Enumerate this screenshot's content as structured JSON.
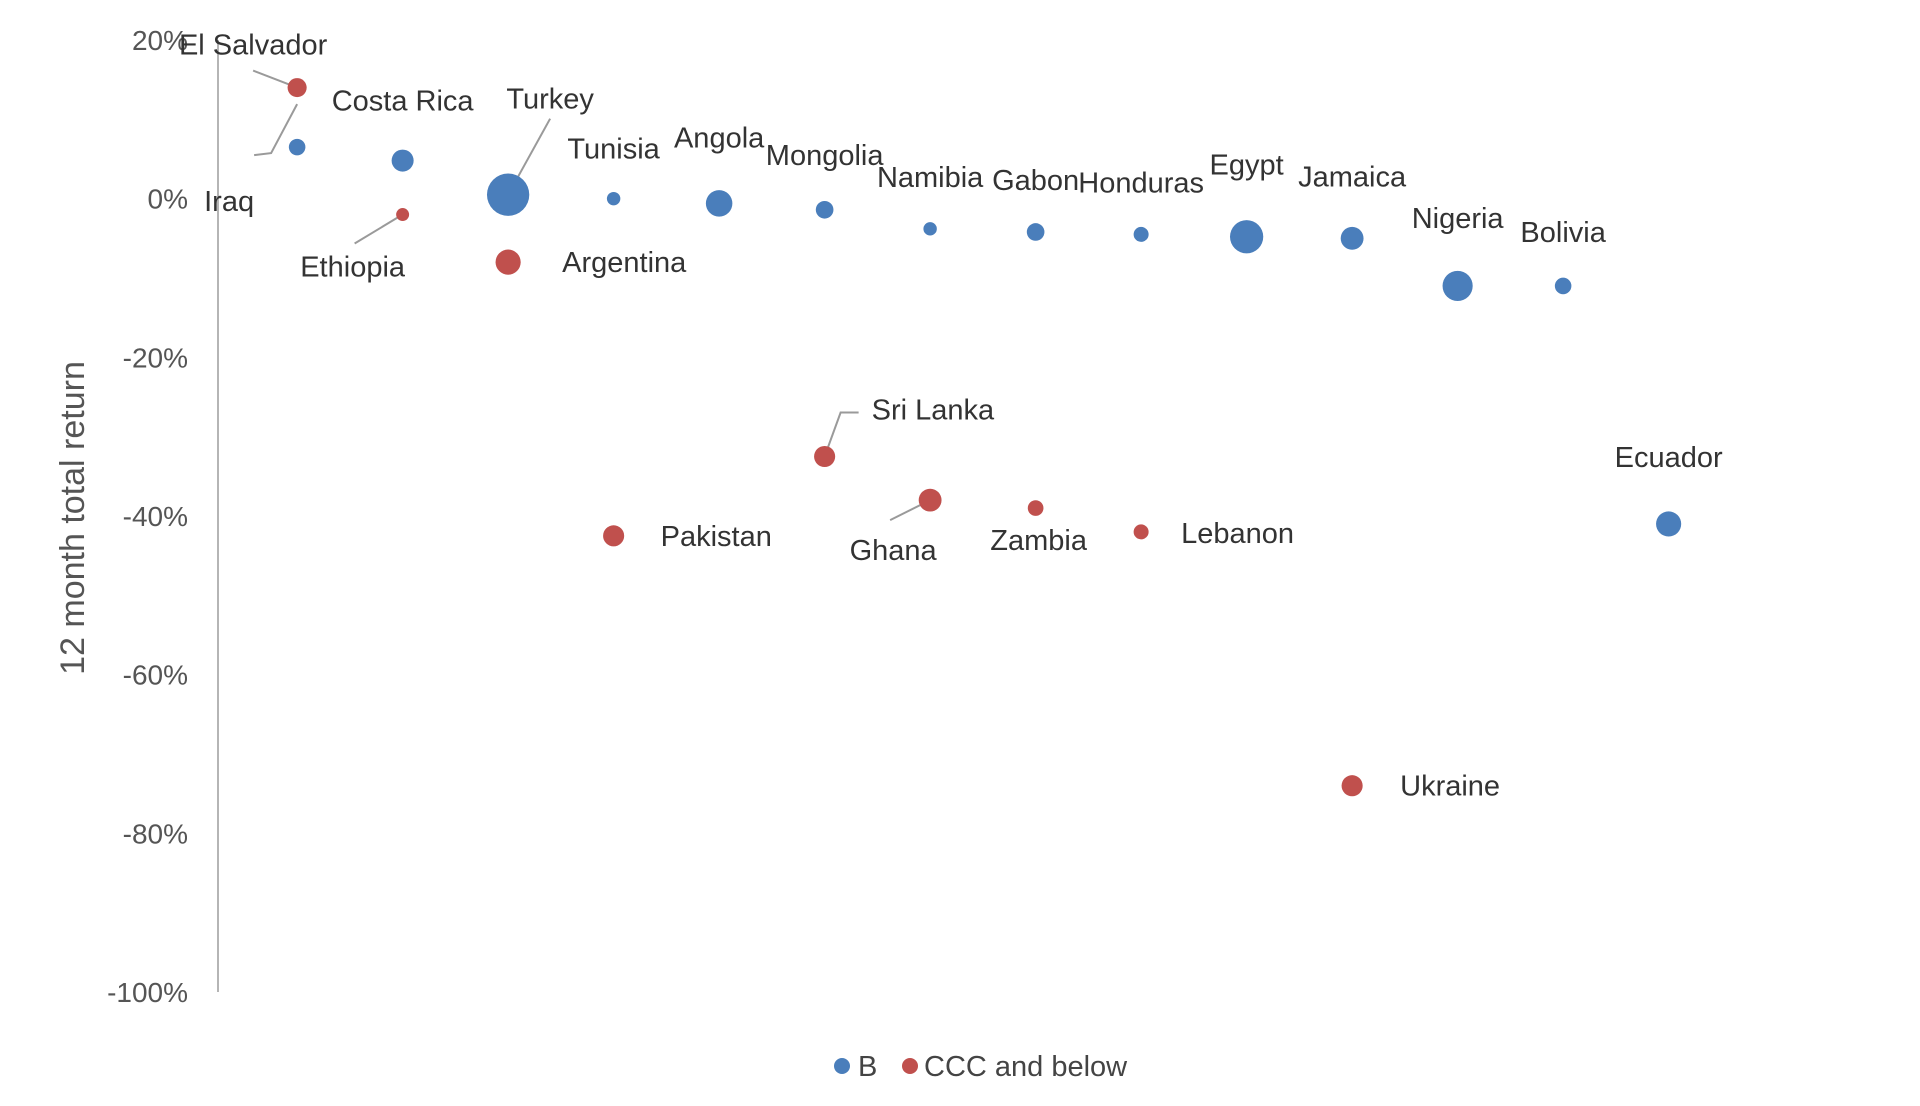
{
  "chart_data": {
    "type": "scatter",
    "title": "",
    "xlabel": "",
    "ylabel": "12 month total return",
    "ylim": [
      -100,
      20
    ],
    "y_ticks": [
      "20%",
      "0%",
      "-20%",
      "-40%",
      "-60%",
      "-80%",
      "-100%"
    ],
    "grid": false,
    "legend_position": "bottom",
    "series": [
      {
        "name": "B",
        "color": "#4a7ebb",
        "points": [
          {
            "label": "Iraq",
            "x": 1,
            "y": 6.5,
            "size": 1.5
          },
          {
            "label": "Costa Rica",
            "x": 2,
            "y": 4.8,
            "size": 4
          },
          {
            "label": "Turkey",
            "x": 3,
            "y": 0.5,
            "size": 24
          },
          {
            "label": "Tunisia",
            "x": 4,
            "y": 0,
            "size": 0.6
          },
          {
            "label": "Angola",
            "x": 5,
            "y": -0.6,
            "size": 7
          },
          {
            "label": "Mongolia",
            "x": 6,
            "y": -1.4,
            "size": 1.9
          },
          {
            "label": "Namibia",
            "x": 7,
            "y": -3.8,
            "size": 0.6
          },
          {
            "label": "Gabon",
            "x": 8,
            "y": -4.2,
            "size": 1.9
          },
          {
            "label": "Honduras",
            "x": 9,
            "y": -4.5,
            "size": 1
          },
          {
            "label": "Egypt",
            "x": 10,
            "y": -4.8,
            "size": 13
          },
          {
            "label": "Jamaica",
            "x": 11,
            "y": -5,
            "size": 4.5
          },
          {
            "label": "Nigeria",
            "x": 12,
            "y": -11,
            "size": 10
          },
          {
            "label": "Bolivia",
            "x": 13,
            "y": -11,
            "size": 1.5
          },
          {
            "label": "Ecuador",
            "x": 14,
            "y": -41,
            "size": 6
          }
        ]
      },
      {
        "name": "CCC and below",
        "color": "#c0504d",
        "points": [
          {
            "label": "El Salvador",
            "x": 1,
            "y": 14,
            "size": 2.5
          },
          {
            "label": "Ethiopia",
            "x": 2,
            "y": -2,
            "size": 0.5
          },
          {
            "label": "Argentina",
            "x": 3,
            "y": -8,
            "size": 6
          },
          {
            "label": "Pakistan",
            "x": 4,
            "y": -42.5,
            "size": 3.5
          },
          {
            "label": "Sri Lanka",
            "x": 6,
            "y": -32.5,
            "size": 3.5
          },
          {
            "label": "Ghana",
            "x": 7,
            "y": -38,
            "size": 4.5
          },
          {
            "label": "Zambia",
            "x": 8,
            "y": -39,
            "size": 1.2
          },
          {
            "label": "Lebanon",
            "x": 9,
            "y": -42,
            "size": 1
          },
          {
            "label": "Ukraine",
            "x": 11,
            "y": -74,
            "size": 3.5
          }
        ]
      }
    ]
  }
}
